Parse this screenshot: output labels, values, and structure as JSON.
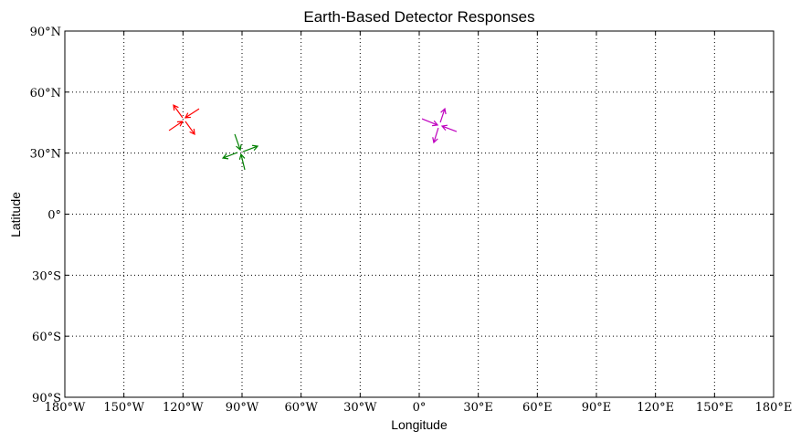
{
  "chart_data": {
    "type": "quiver",
    "title": "Earth-Based Detector Responses",
    "xlabel": "Longitude",
    "ylabel": "Latitude",
    "xlim": [
      -180,
      180
    ],
    "ylim": [
      -90,
      90
    ],
    "grid": true,
    "xticks": [
      -180,
      -150,
      -120,
      -90,
      -60,
      -30,
      0,
      30,
      60,
      90,
      120,
      150,
      180
    ],
    "xtick_labels": [
      "180°W",
      "150°W",
      "120°W",
      "90°W",
      "60°W",
      "30°W",
      "0°",
      "30°E",
      "60°E",
      "90°E",
      "120°E",
      "150°E",
      "180°E"
    ],
    "yticks": [
      90,
      60,
      30,
      0,
      -30,
      -60,
      -90
    ],
    "ytick_labels": [
      "90°N",
      "60°N",
      "30°N",
      "0°",
      "30°S",
      "60°S",
      "90°S"
    ],
    "series": [
      {
        "color": "#ff0000",
        "arrows": [
          {
            "from": [
              -120.2,
              47.4
            ],
            "to": [
              -124.8,
              53.6
            ]
          },
          {
            "from": [
              -111.8,
              51.8
            ],
            "to": [
              -118.8,
              47.4
            ]
          },
          {
            "from": [
              -127.1,
              41.1
            ],
            "to": [
              -120.2,
              45.6
            ]
          },
          {
            "from": [
              -118.8,
              45.6
            ],
            "to": [
              -114.1,
              39.3
            ]
          }
        ]
      },
      {
        "color": "#008000",
        "arrows": [
          {
            "from": [
              -93.7,
              39.3
            ],
            "to": [
              -90.9,
              31.6
            ]
          },
          {
            "from": [
              -89.5,
              30.7
            ],
            "to": [
              -82.1,
              33.4
            ]
          },
          {
            "from": [
              -92.3,
              30.3
            ],
            "to": [
              -99.7,
              27.6
            ]
          },
          {
            "from": [
              -88.6,
              21.8
            ],
            "to": [
              -90.5,
              29.4
            ]
          }
        ]
      },
      {
        "color": "#bf00bf",
        "arrows": [
          {
            "from": [
              1.4,
              46.9
            ],
            "to": [
              9.3,
              43.8
            ]
          },
          {
            "from": [
              10.7,
              45.1
            ],
            "to": [
              13.0,
              51.8
            ]
          },
          {
            "from": [
              19.0,
              40.6
            ],
            "to": [
              11.6,
              43.3
            ]
          },
          {
            "from": [
              9.7,
              42.4
            ],
            "to": [
              7.4,
              35.2
            ]
          }
        ]
      }
    ]
  }
}
